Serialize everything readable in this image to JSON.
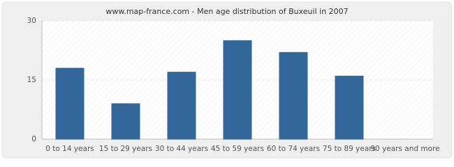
{
  "chart_data": {
    "type": "bar",
    "title": "www.map-france.com - Men age distribution of Buxeuil in 2007",
    "categories": [
      "0 to 14 years",
      "15 to 29 years",
      "30 to 44 years",
      "45 to 59 years",
      "60 to 74 years",
      "75 to 89 years",
      "90 years and more"
    ],
    "values": [
      18,
      9,
      17,
      25,
      22,
      16,
      0
    ],
    "color": "#336699",
    "ylim": [
      0,
      30
    ],
    "yticks": [
      0,
      15,
      30
    ],
    "grid": true
  }
}
